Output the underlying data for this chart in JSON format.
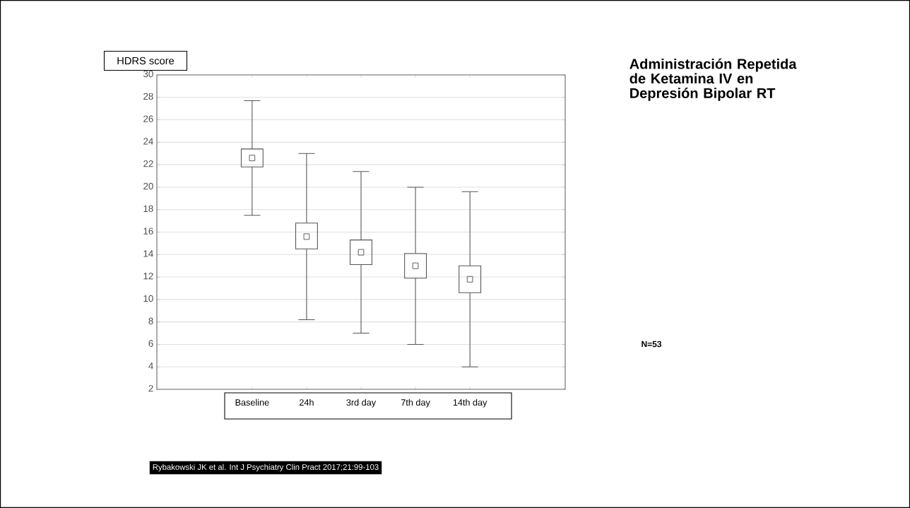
{
  "chart_data": {
    "type": "box",
    "title": "Administración Repetida de Ketamina IV en Depresión Bipolar RT",
    "ylabel": "HDRS score",
    "categories": [
      "Baseline",
      "24h",
      "3rd day",
      "7th day",
      "14th day"
    ],
    "color": "#555555",
    "boxes": [
      {
        "low": 17.5,
        "q1": 21.8,
        "median": 22.6,
        "q3": 23.4,
        "high": 27.7
      },
      {
        "low": 8.2,
        "q1": 14.5,
        "median": 15.6,
        "q3": 16.8,
        "high": 23.0
      },
      {
        "low": 7.0,
        "q1": 13.1,
        "median": 14.2,
        "q3": 15.3,
        "high": 21.4
      },
      {
        "low": 6.0,
        "q1": 11.9,
        "median": 13.0,
        "q3": 14.1,
        "high": 20.0
      },
      {
        "low": 4.0,
        "q1": 10.6,
        "median": 11.8,
        "q3": 13.0,
        "high": 19.6
      }
    ],
    "ylim": [
      2,
      30
    ],
    "yticks": [
      2,
      4,
      6,
      8,
      10,
      12,
      14,
      16,
      18,
      20,
      22,
      24,
      26,
      28,
      30
    ],
    "grid": "y",
    "annotations": [
      "N=53",
      "Rybakowski JK et al. Int J Psychiatry Clin Pract 2017;21:99-103"
    ]
  }
}
